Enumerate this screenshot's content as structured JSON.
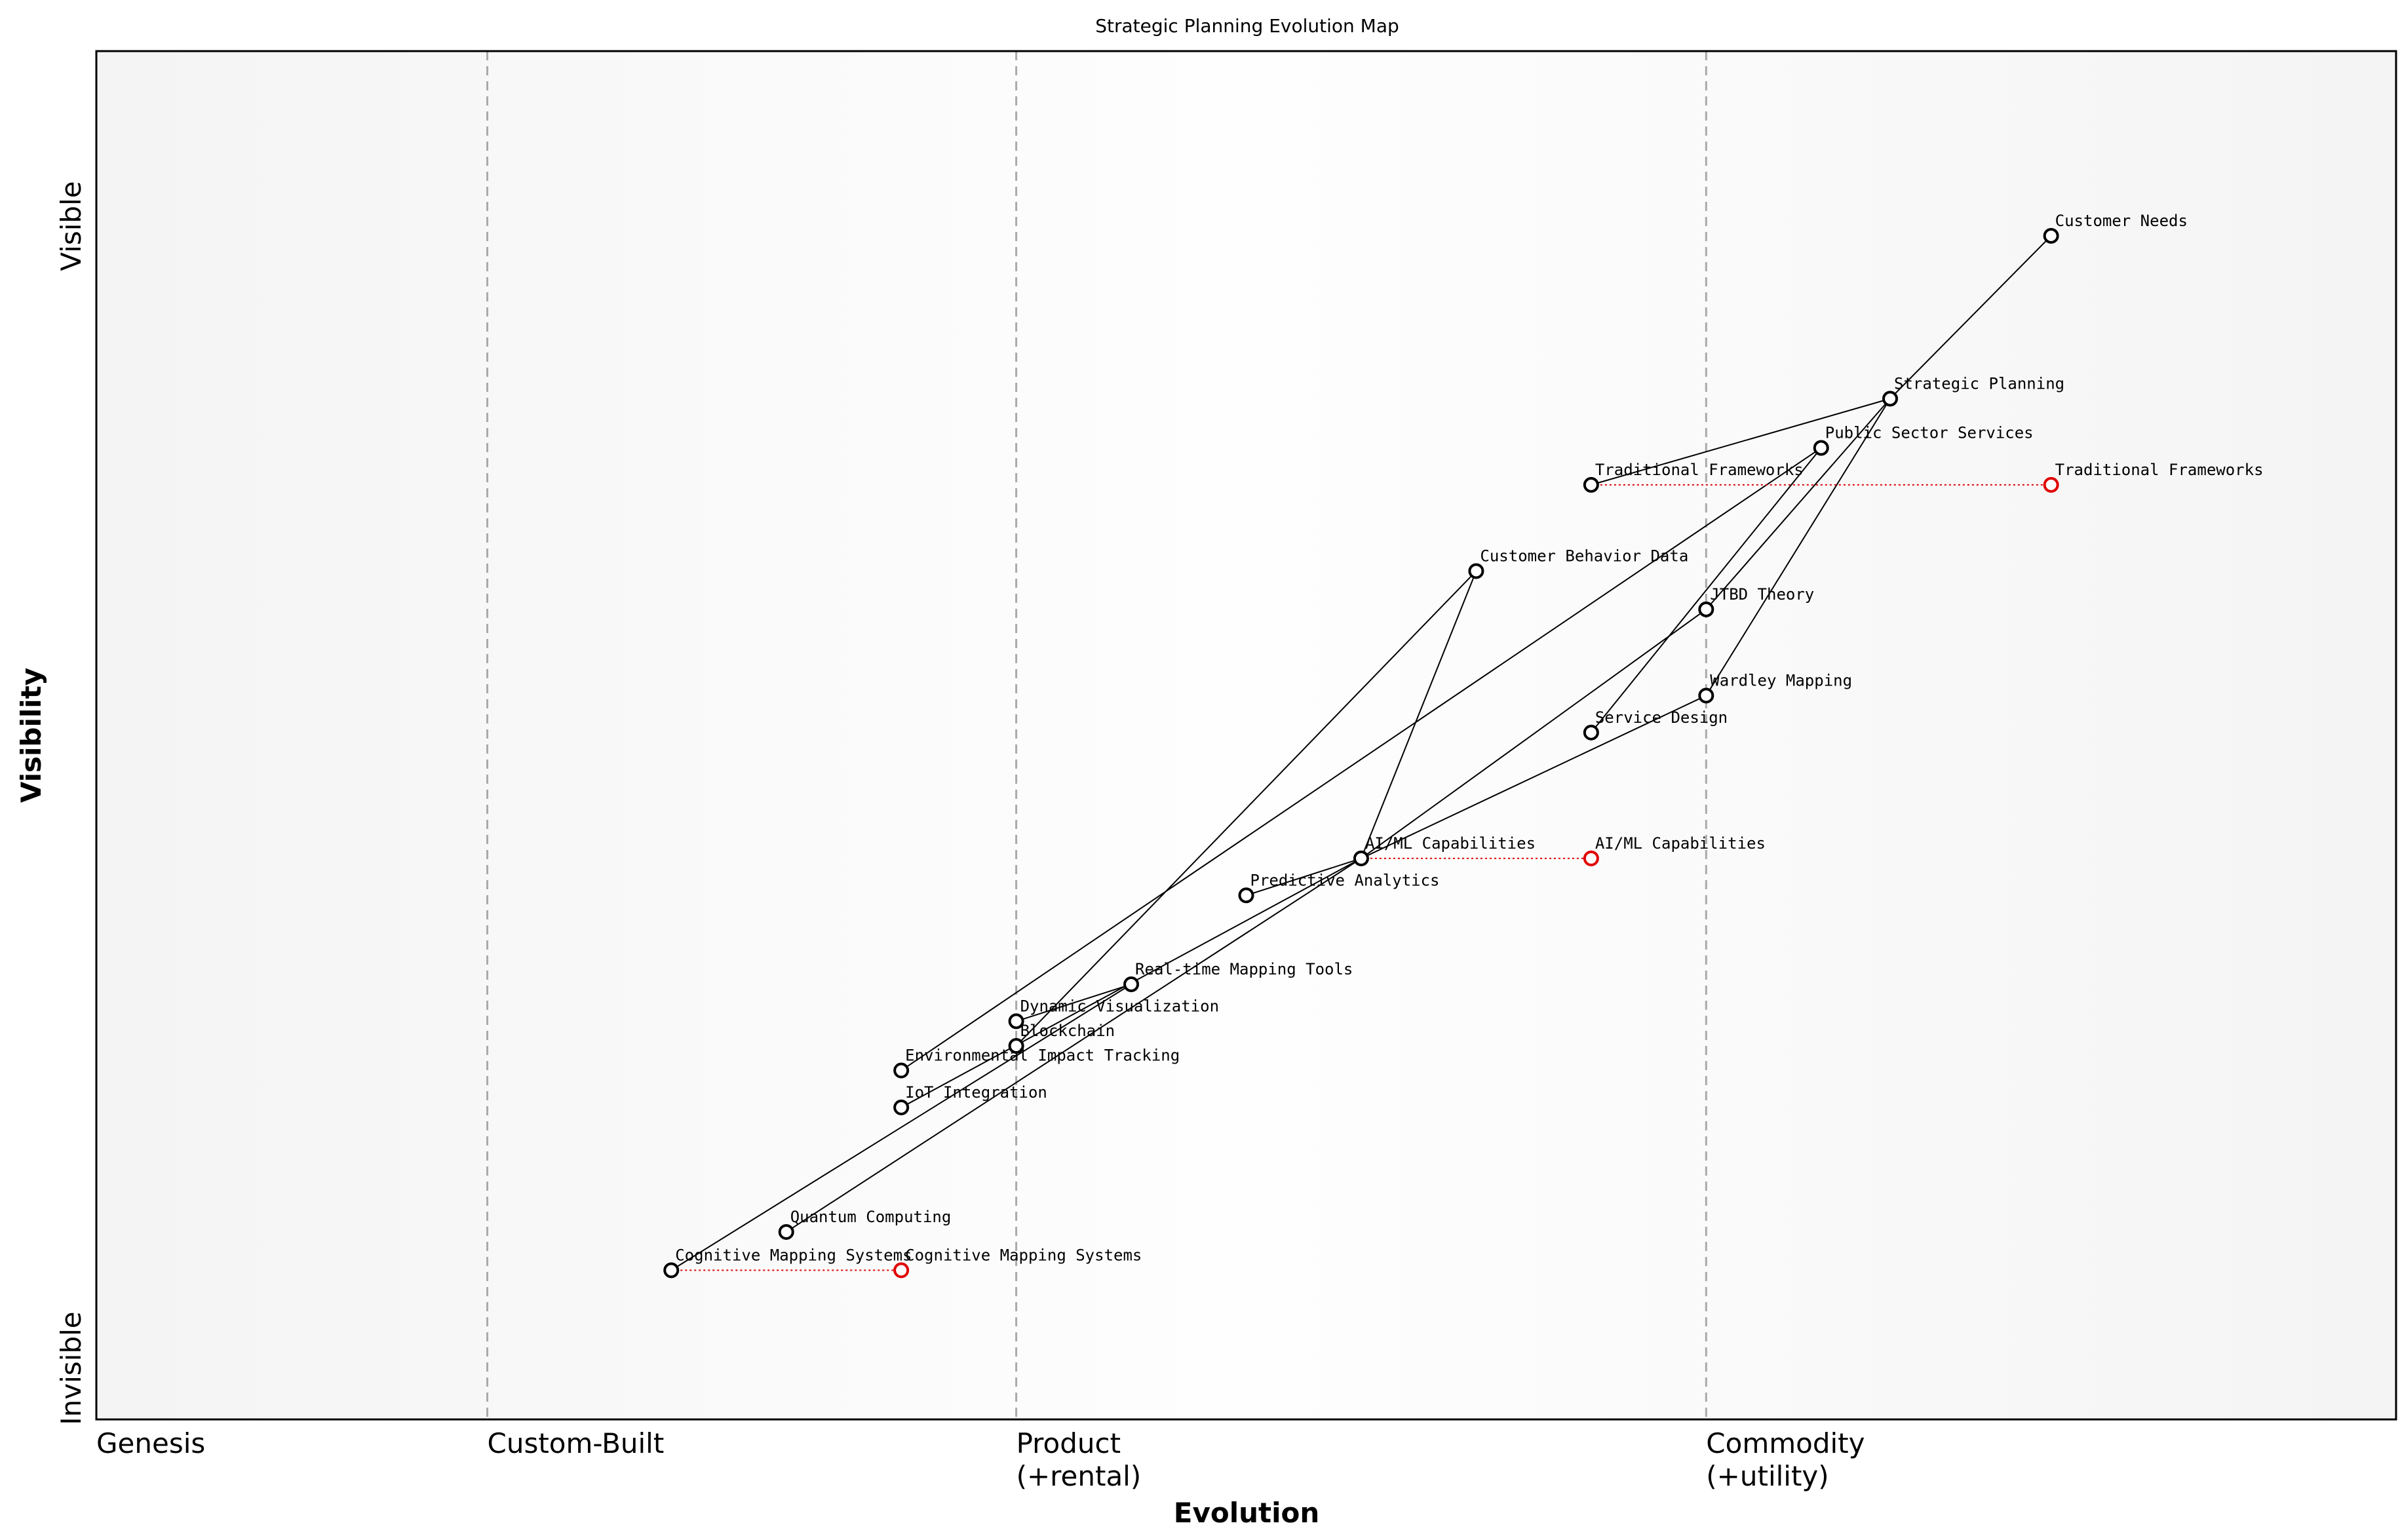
{
  "title": "Strategic Planning Evolution Map",
  "axes": {
    "x_title": "Evolution",
    "y_title": "Visibility",
    "y_top_label": "Visible",
    "y_bottom_label": "Invisible",
    "stages": [
      {
        "lines": [
          "Genesis"
        ],
        "at": 0.0
      },
      {
        "lines": [
          "Custom-Built"
        ],
        "at": 0.17
      },
      {
        "lines": [
          "Product",
          "(+rental)"
        ],
        "at": 0.4
      },
      {
        "lines": [
          "Commodity",
          "(+utility)"
        ],
        "at": 0.7
      }
    ],
    "boundaries": [
      0.17,
      0.4,
      0.7
    ]
  },
  "colors": {
    "node": "#000000",
    "evolved_node": "#e00000",
    "evolution_line": "#e00000",
    "link": "#000000",
    "boundary": "#aaaaaa"
  },
  "components": [
    {
      "id": "customer-needs",
      "label": "Customer Needs",
      "evolution": 0.85,
      "visibility": 0.865
    },
    {
      "id": "strategic-planning",
      "label": "Strategic Planning",
      "evolution": 0.78,
      "visibility": 0.746
    },
    {
      "id": "public-sector-services",
      "label": "Public Sector Services",
      "evolution": 0.75,
      "visibility": 0.71
    },
    {
      "id": "traditional-frameworks",
      "label": "Traditional Frameworks",
      "evolution": 0.65,
      "visibility": 0.683
    },
    {
      "id": "customer-behavior-data",
      "label": "Customer Behavior Data",
      "evolution": 0.6,
      "visibility": 0.62
    },
    {
      "id": "jtbd-theory",
      "label": "JTBD Theory",
      "evolution": 0.7,
      "visibility": 0.592
    },
    {
      "id": "wardley-mapping",
      "label": "Wardley Mapping",
      "evolution": 0.7,
      "visibility": 0.529
    },
    {
      "id": "service-design",
      "label": "Service Design",
      "evolution": 0.65,
      "visibility": 0.502
    },
    {
      "id": "ai-ml-capabilities",
      "label": "AI/ML Capabilities",
      "evolution": 0.55,
      "visibility": 0.41
    },
    {
      "id": "predictive-analytics",
      "label": "Predictive Analytics",
      "evolution": 0.5,
      "visibility": 0.383
    },
    {
      "id": "real-time-mapping-tools",
      "label": "Real-time Mapping Tools",
      "evolution": 0.45,
      "visibility": 0.318
    },
    {
      "id": "dynamic-visualization",
      "label": "Dynamic Visualization",
      "evolution": 0.4,
      "visibility": 0.291
    },
    {
      "id": "blockchain",
      "label": "Blockchain",
      "evolution": 0.4,
      "visibility": 0.273
    },
    {
      "id": "environmental-impact-tracking",
      "label": "Environmental Impact Tracking",
      "evolution": 0.35,
      "visibility": 0.255
    },
    {
      "id": "iot-integration",
      "label": "IoT Integration",
      "evolution": 0.35,
      "visibility": 0.228
    },
    {
      "id": "quantum-computing",
      "label": "Quantum Computing",
      "evolution": 0.3,
      "visibility": 0.137
    },
    {
      "id": "cognitive-mapping-systems",
      "label": "Cognitive Mapping Systems",
      "evolution": 0.25,
      "visibility": 0.109
    }
  ],
  "evolutions": [
    {
      "from": "traditional-frameworks",
      "label": "Traditional Frameworks",
      "evolution": 0.85
    },
    {
      "from": "ai-ml-capabilities",
      "label": "AI/ML Capabilities",
      "evolution": 0.65
    },
    {
      "from": "cognitive-mapping-systems",
      "label": "Cognitive Mapping Systems",
      "evolution": 0.35
    }
  ],
  "links": [
    [
      "customer-needs",
      "strategic-planning"
    ],
    [
      "strategic-planning",
      "traditional-frameworks"
    ],
    [
      "strategic-planning",
      "jtbd-theory"
    ],
    [
      "strategic-planning",
      "wardley-mapping"
    ],
    [
      "public-sector-services",
      "service-design"
    ],
    [
      "public-sector-services",
      "environmental-impact-tracking"
    ],
    [
      "customer-behavior-data",
      "ai-ml-capabilities"
    ],
    [
      "customer-behavior-data",
      "blockchain"
    ],
    [
      "jtbd-theory",
      "ai-ml-capabilities"
    ],
    [
      "wardley-mapping",
      "ai-ml-capabilities"
    ],
    [
      "ai-ml-capabilities",
      "predictive-analytics"
    ],
    [
      "ai-ml-capabilities",
      "iot-integration"
    ],
    [
      "ai-ml-capabilities",
      "quantum-computing"
    ],
    [
      "real-time-mapping-tools",
      "dynamic-visualization"
    ],
    [
      "real-time-mapping-tools",
      "cognitive-mapping-systems"
    ]
  ]
}
